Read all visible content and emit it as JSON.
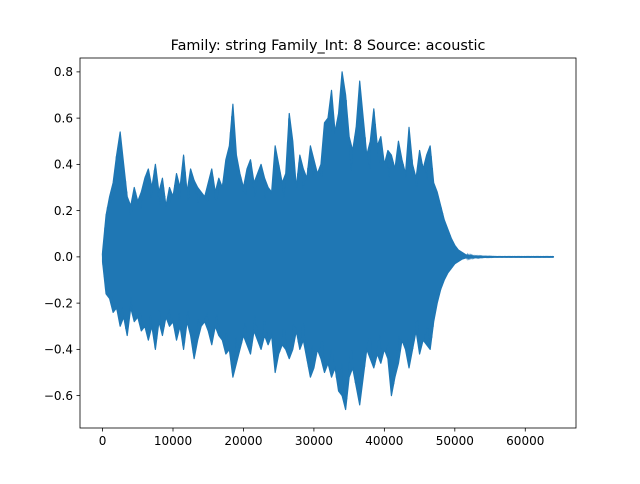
{
  "chart_data": {
    "type": "line",
    "title": "Family: string Family_Int: 8 Source: acoustic",
    "xlabel": "",
    "ylabel": "",
    "xlim": [
      -3200,
      67200
    ],
    "ylim": [
      -0.74,
      0.86
    ],
    "xticks": [
      0,
      10000,
      20000,
      30000,
      40000,
      50000,
      60000
    ],
    "xtick_labels": [
      "0",
      "10000",
      "20000",
      "30000",
      "40000",
      "50000",
      "60000"
    ],
    "yticks": [
      -0.6,
      -0.4,
      -0.2,
      0.0,
      0.2,
      0.4,
      0.6,
      0.8
    ],
    "ytick_labels": [
      "−0.6",
      "−0.4",
      "−0.2",
      "0.0",
      "0.2",
      "0.4",
      "0.6",
      "0.8"
    ],
    "grid": false,
    "legend": "none",
    "series_color": "#1f77b4",
    "series": [
      {
        "x": [
          0,
          500,
          1000,
          1500,
          2000,
          2500,
          3000,
          3500,
          4000,
          4500,
          5000,
          5500,
          6000,
          6500,
          7000,
          7500,
          8000,
          8500,
          9000,
          9500,
          10000,
          10500,
          11000,
          11500,
          12000,
          12500,
          13000,
          13500,
          14000,
          14500,
          15000,
          15500,
          16000,
          16500,
          17000,
          17500,
          18000,
          18500,
          19000,
          19500,
          20000,
          20500,
          21000,
          21500,
          22000,
          22500,
          23000,
          23500,
          24000,
          24500,
          25000,
          25500,
          26000,
          26500,
          27000,
          27500,
          28000,
          28500,
          29000,
          29500,
          30000,
          30500,
          31000,
          31500,
          32000,
          32500,
          33000,
          33500,
          34000,
          34500,
          35000,
          35500,
          36000,
          36500,
          37000,
          37500,
          38000,
          38500,
          39000,
          39500,
          40000,
          40500,
          41000,
          41500,
          42000,
          42500,
          43000,
          43500,
          44000,
          44500,
          45000,
          45500,
          46000,
          46500,
          47000,
          47500,
          48000,
          48500,
          49000,
          49500,
          50000,
          50500,
          51000,
          51500,
          52000,
          53000,
          54000,
          56000,
          58000,
          60000,
          62000,
          64000
        ],
        "upper": [
          0.02,
          0.18,
          0.26,
          0.32,
          0.44,
          0.54,
          0.4,
          0.26,
          0.22,
          0.3,
          0.24,
          0.28,
          0.34,
          0.38,
          0.3,
          0.4,
          0.28,
          0.34,
          0.22,
          0.3,
          0.26,
          0.36,
          0.3,
          0.44,
          0.28,
          0.38,
          0.33,
          0.3,
          0.28,
          0.26,
          0.32,
          0.38,
          0.28,
          0.34,
          0.3,
          0.42,
          0.48,
          0.66,
          0.44,
          0.36,
          0.3,
          0.38,
          0.42,
          0.32,
          0.36,
          0.4,
          0.34,
          0.3,
          0.28,
          0.48,
          0.4,
          0.32,
          0.36,
          0.62,
          0.5,
          0.3,
          0.44,
          0.38,
          0.34,
          0.48,
          0.42,
          0.36,
          0.4,
          0.58,
          0.6,
          0.72,
          0.54,
          0.62,
          0.8,
          0.7,
          0.52,
          0.46,
          0.56,
          0.76,
          0.6,
          0.44,
          0.5,
          0.64,
          0.48,
          0.52,
          0.4,
          0.46,
          0.44,
          0.38,
          0.5,
          0.42,
          0.36,
          0.56,
          0.4,
          0.34,
          0.46,
          0.38,
          0.44,
          0.48,
          0.32,
          0.28,
          0.22,
          0.16,
          0.12,
          0.08,
          0.05,
          0.03,
          0.02,
          0.01,
          0.005,
          0.003,
          0.002,
          0.001,
          0.001,
          0.001,
          0.001,
          0.001
        ],
        "lower": [
          -0.02,
          -0.16,
          -0.18,
          -0.24,
          -0.22,
          -0.3,
          -0.26,
          -0.34,
          -0.22,
          -0.28,
          -0.26,
          -0.32,
          -0.3,
          -0.36,
          -0.3,
          -0.4,
          -0.28,
          -0.34,
          -0.26,
          -0.3,
          -0.28,
          -0.36,
          -0.3,
          -0.4,
          -0.28,
          -0.34,
          -0.44,
          -0.36,
          -0.3,
          -0.28,
          -0.32,
          -0.38,
          -0.3,
          -0.34,
          -0.36,
          -0.42,
          -0.4,
          -0.52,
          -0.46,
          -0.4,
          -0.34,
          -0.38,
          -0.42,
          -0.32,
          -0.36,
          -0.4,
          -0.34,
          -0.38,
          -0.34,
          -0.5,
          -0.42,
          -0.38,
          -0.4,
          -0.44,
          -0.4,
          -0.32,
          -0.4,
          -0.36,
          -0.44,
          -0.52,
          -0.48,
          -0.4,
          -0.44,
          -0.5,
          -0.46,
          -0.52,
          -0.48,
          -0.58,
          -0.6,
          -0.66,
          -0.52,
          -0.48,
          -0.56,
          -0.64,
          -0.52,
          -0.4,
          -0.44,
          -0.48,
          -0.42,
          -0.46,
          -0.4,
          -0.44,
          -0.6,
          -0.52,
          -0.46,
          -0.36,
          -0.4,
          -0.48,
          -0.4,
          -0.32,
          -0.42,
          -0.36,
          -0.38,
          -0.4,
          -0.28,
          -0.2,
          -0.14,
          -0.1,
          -0.07,
          -0.05,
          -0.03,
          -0.02,
          -0.01,
          -0.005,
          -0.004,
          -0.003,
          -0.002,
          -0.001,
          -0.001,
          -0.001,
          -0.001,
          -0.001
        ]
      }
    ]
  }
}
